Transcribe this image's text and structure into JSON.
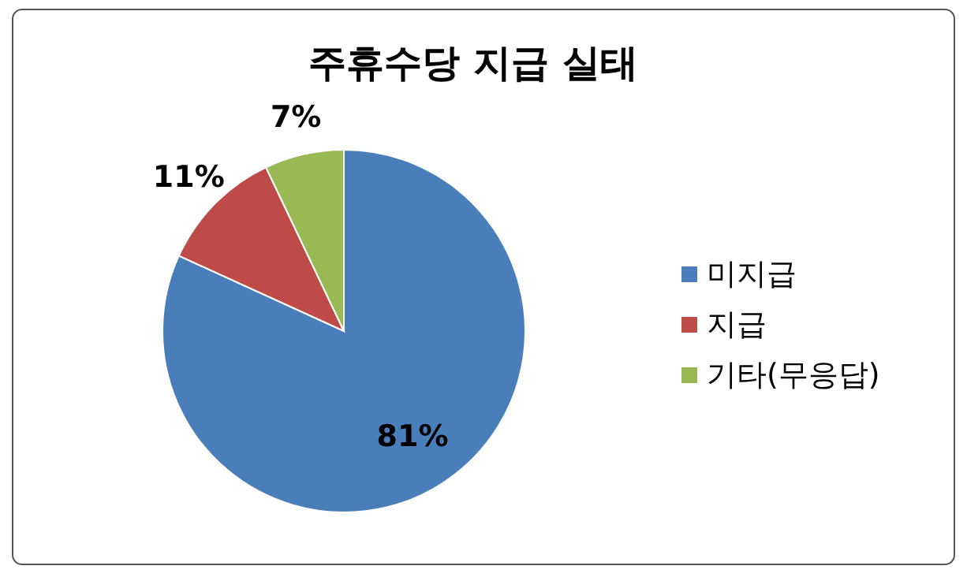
{
  "chart_data": {
    "type": "pie",
    "title": "주휴수당 지급 실태",
    "categories": [
      "미지급",
      "지급",
      "기타(무응답)"
    ],
    "values": [
      81,
      11,
      7
    ],
    "colors": [
      "#4a7ebb",
      "#be4b48",
      "#98b954"
    ],
    "value_labels": [
      "81%",
      "11%",
      "7%"
    ],
    "legend": "right"
  }
}
